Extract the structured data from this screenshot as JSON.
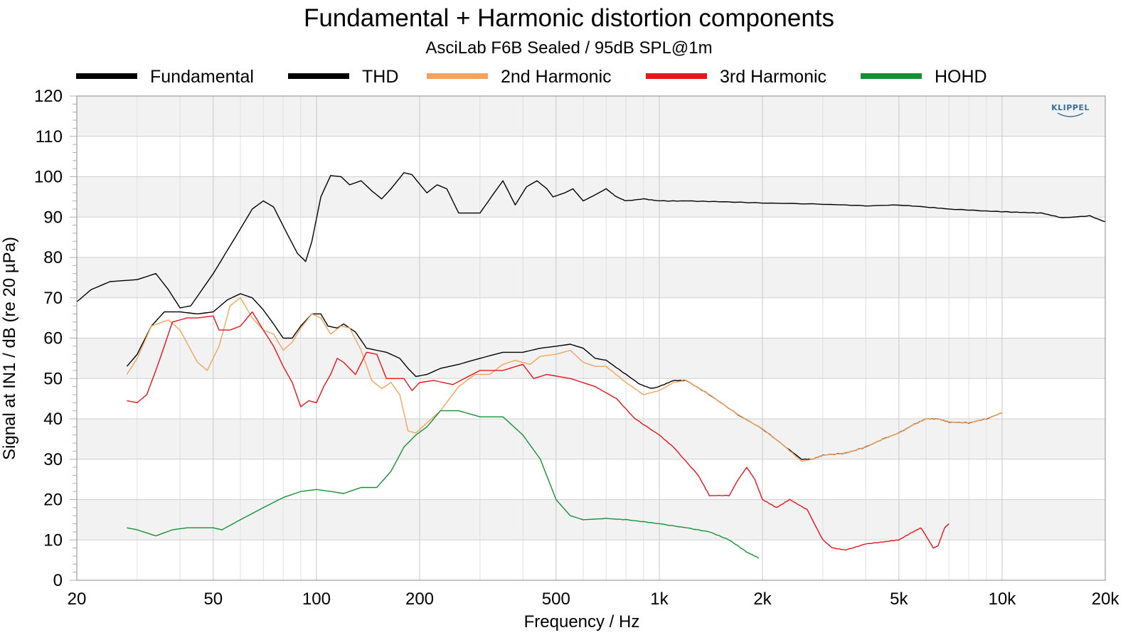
{
  "chart_data": {
    "type": "line",
    "title": "Fundamental + Harmonic distortion components",
    "subtitle": "AsciLab F6B Sealed / 95dB SPL@1m",
    "xlabel": "Frequency / Hz",
    "ylabel": "Signal at IN1 / dB (re 20 µPa)",
    "x_scale": "log",
    "xlim": [
      20,
      20000
    ],
    "ylim": [
      0,
      120
    ],
    "x_ticks": [
      {
        "value": 20,
        "label": "20"
      },
      {
        "value": 50,
        "label": "50"
      },
      {
        "value": 100,
        "label": "100"
      },
      {
        "value": 200,
        "label": "200"
      },
      {
        "value": 500,
        "label": "500"
      },
      {
        "value": 1000,
        "label": "1k"
      },
      {
        "value": 2000,
        "label": "2k"
      },
      {
        "value": 5000,
        "label": "5k"
      },
      {
        "value": 10000,
        "label": "10k"
      },
      {
        "value": 20000,
        "label": "20k"
      }
    ],
    "y_ticks": [
      0,
      10,
      20,
      30,
      40,
      50,
      60,
      70,
      80,
      90,
      100,
      110,
      120
    ],
    "grid": true,
    "legend_position": "top",
    "logo": "KLIPPEL",
    "series": [
      {
        "name": "Fundamental",
        "color": "#000000",
        "points": [
          [
            20,
            69
          ],
          [
            22,
            72
          ],
          [
            25,
            74
          ],
          [
            30,
            74.5
          ],
          [
            34,
            76
          ],
          [
            37,
            72
          ],
          [
            40,
            67.5
          ],
          [
            43,
            68
          ],
          [
            50,
            76
          ],
          [
            58,
            85
          ],
          [
            65,
            92
          ],
          [
            70,
            94
          ],
          [
            75,
            92.5
          ],
          [
            82,
            86
          ],
          [
            88,
            81
          ],
          [
            93,
            79
          ],
          [
            97,
            84
          ],
          [
            103,
            95
          ],
          [
            110,
            100.3
          ],
          [
            118,
            100
          ],
          [
            125,
            98
          ],
          [
            135,
            99
          ],
          [
            145,
            96.5
          ],
          [
            155,
            94.5
          ],
          [
            165,
            97
          ],
          [
            180,
            101
          ],
          [
            190,
            100.5
          ],
          [
            210,
            96
          ],
          [
            225,
            98
          ],
          [
            240,
            97
          ],
          [
            260,
            91
          ],
          [
            280,
            91
          ],
          [
            300,
            91
          ],
          [
            330,
            96
          ],
          [
            350,
            99
          ],
          [
            380,
            93
          ],
          [
            410,
            97.5
          ],
          [
            440,
            99
          ],
          [
            470,
            97
          ],
          [
            490,
            95
          ],
          [
            530,
            96
          ],
          [
            560,
            97
          ],
          [
            600,
            94
          ],
          [
            650,
            95.5
          ],
          [
            700,
            97
          ],
          [
            750,
            95
          ],
          [
            800,
            94
          ],
          [
            900,
            94.5
          ],
          [
            1000,
            94
          ],
          [
            1200,
            94
          ],
          [
            1500,
            93.8
          ],
          [
            2000,
            93.5
          ],
          [
            3000,
            93.2
          ],
          [
            4000,
            92.8
          ],
          [
            5000,
            93
          ],
          [
            6000,
            92.5
          ],
          [
            7000,
            92
          ],
          [
            9000,
            91.5
          ],
          [
            11000,
            91.2
          ],
          [
            13000,
            91
          ],
          [
            15000,
            89.8
          ],
          [
            18000,
            90.3
          ],
          [
            20000,
            88.8
          ]
        ]
      },
      {
        "name": "THD",
        "color": "#000000",
        "points": [
          [
            28,
            53
          ],
          [
            30,
            56
          ],
          [
            33,
            63
          ],
          [
            36,
            66.5
          ],
          [
            40,
            66.5
          ],
          [
            45,
            66
          ],
          [
            50,
            66.5
          ],
          [
            55,
            69.5
          ],
          [
            60,
            71
          ],
          [
            65,
            70
          ],
          [
            70,
            67
          ],
          [
            75,
            63.5
          ],
          [
            80,
            60
          ],
          [
            85,
            60
          ],
          [
            90,
            63
          ],
          [
            97,
            66
          ],
          [
            103,
            66
          ],
          [
            108,
            63
          ],
          [
            115,
            62.5
          ],
          [
            120,
            63.5
          ],
          [
            130,
            61.5
          ],
          [
            140,
            57.5
          ],
          [
            160,
            56.5
          ],
          [
            175,
            55
          ],
          [
            185,
            52.5
          ],
          [
            195,
            50.5
          ],
          [
            210,
            51
          ],
          [
            230,
            52.5
          ],
          [
            260,
            53.5
          ],
          [
            300,
            55
          ],
          [
            350,
            56.5
          ],
          [
            400,
            56.5
          ],
          [
            450,
            57.5
          ],
          [
            500,
            58
          ],
          [
            550,
            58.5
          ],
          [
            600,
            57.5
          ],
          [
            650,
            55
          ],
          [
            700,
            54.5
          ],
          [
            800,
            51
          ],
          [
            880,
            48.5
          ],
          [
            950,
            47.5
          ],
          [
            1000,
            48
          ],
          [
            1100,
            49.5
          ],
          [
            1200,
            49.5
          ],
          [
            1400,
            46
          ],
          [
            1700,
            41
          ],
          [
            2000,
            37.5
          ],
          [
            2300,
            33.5
          ],
          [
            2600,
            30
          ],
          [
            2800,
            30
          ],
          [
            3000,
            31
          ],
          [
            3500,
            31.5
          ],
          [
            4000,
            33
          ],
          [
            4500,
            35
          ],
          [
            5000,
            36.5
          ],
          [
            5500,
            38.5
          ],
          [
            6000,
            40
          ],
          [
            6500,
            40
          ],
          [
            7000,
            39.2
          ],
          [
            8000,
            39
          ],
          [
            9000,
            40
          ],
          [
            10000,
            41.5
          ]
        ]
      },
      {
        "name": "2nd Harmonic",
        "color": "#f5a35a",
        "points": [
          [
            28,
            51
          ],
          [
            30,
            55
          ],
          [
            33,
            63
          ],
          [
            37,
            64.5
          ],
          [
            40,
            62
          ],
          [
            45,
            54
          ],
          [
            48,
            52
          ],
          [
            52,
            58
          ],
          [
            56,
            68
          ],
          [
            60,
            70
          ],
          [
            65,
            65
          ],
          [
            70,
            62
          ],
          [
            75,
            61
          ],
          [
            80,
            57
          ],
          [
            85,
            59
          ],
          [
            90,
            62.5
          ],
          [
            97,
            66
          ],
          [
            103,
            65
          ],
          [
            110,
            61
          ],
          [
            118,
            63
          ],
          [
            125,
            62.5
          ],
          [
            135,
            57
          ],
          [
            145,
            49.5
          ],
          [
            155,
            47.5
          ],
          [
            165,
            49
          ],
          [
            175,
            46
          ],
          [
            185,
            37
          ],
          [
            195,
            36.5
          ],
          [
            210,
            39
          ],
          [
            230,
            42
          ],
          [
            260,
            48
          ],
          [
            290,
            51
          ],
          [
            320,
            51
          ],
          [
            350,
            53.5
          ],
          [
            380,
            54.5
          ],
          [
            420,
            53.5
          ],
          [
            450,
            55.5
          ],
          [
            500,
            56
          ],
          [
            550,
            57
          ],
          [
            600,
            54
          ],
          [
            650,
            53
          ],
          [
            700,
            53
          ],
          [
            800,
            49
          ],
          [
            900,
            46
          ],
          [
            1000,
            47
          ],
          [
            1100,
            49
          ],
          [
            1200,
            49.5
          ],
          [
            1400,
            46
          ],
          [
            1700,
            41
          ],
          [
            2000,
            37.5
          ],
          [
            2300,
            33.5
          ],
          [
            2600,
            29.5
          ],
          [
            2800,
            30
          ],
          [
            3000,
            31
          ],
          [
            3500,
            31.5
          ],
          [
            4000,
            33
          ],
          [
            4500,
            35
          ],
          [
            5000,
            36.5
          ],
          [
            5500,
            38.5
          ],
          [
            6000,
            40
          ],
          [
            6500,
            40
          ],
          [
            7000,
            39.2
          ],
          [
            8000,
            39
          ],
          [
            9000,
            40
          ],
          [
            10000,
            41.5
          ]
        ]
      },
      {
        "name": "3rd Harmonic",
        "color": "#e8151b",
        "points": [
          [
            28,
            44.5
          ],
          [
            30,
            44
          ],
          [
            32,
            46
          ],
          [
            34,
            52
          ],
          [
            36,
            58
          ],
          [
            38,
            64
          ],
          [
            42,
            65
          ],
          [
            45,
            65
          ],
          [
            50,
            65.5
          ],
          [
            52,
            62
          ],
          [
            56,
            62
          ],
          [
            60,
            63
          ],
          [
            65,
            66.5
          ],
          [
            70,
            62
          ],
          [
            75,
            58
          ],
          [
            80,
            53
          ],
          [
            85,
            49
          ],
          [
            90,
            43
          ],
          [
            95,
            44.5
          ],
          [
            100,
            44
          ],
          [
            105,
            48
          ],
          [
            110,
            51
          ],
          [
            115,
            55
          ],
          [
            120,
            54
          ],
          [
            130,
            51
          ],
          [
            140,
            56.5
          ],
          [
            150,
            56
          ],
          [
            160,
            50
          ],
          [
            180,
            50
          ],
          [
            190,
            47
          ],
          [
            200,
            49
          ],
          [
            220,
            49.5
          ],
          [
            250,
            48.5
          ],
          [
            300,
            52
          ],
          [
            350,
            52
          ],
          [
            400,
            53.5
          ],
          [
            430,
            50
          ],
          [
            470,
            51
          ],
          [
            550,
            50
          ],
          [
            650,
            48
          ],
          [
            750,
            45
          ],
          [
            850,
            40
          ],
          [
            1000,
            36
          ],
          [
            1100,
            33
          ],
          [
            1300,
            26
          ],
          [
            1400,
            21
          ],
          [
            1600,
            21
          ],
          [
            1700,
            25
          ],
          [
            1800,
            28
          ],
          [
            1900,
            25
          ],
          [
            2000,
            20
          ],
          [
            2200,
            18
          ],
          [
            2400,
            20
          ],
          [
            2700,
            17.5
          ],
          [
            3000,
            10
          ],
          [
            3200,
            8
          ],
          [
            3500,
            7.5
          ],
          [
            4000,
            9
          ],
          [
            4500,
            9.5
          ],
          [
            5000,
            10
          ],
          [
            5500,
            12
          ],
          [
            5800,
            13
          ],
          [
            6000,
            11
          ],
          [
            6300,
            8
          ],
          [
            6500,
            8.5
          ],
          [
            6800,
            13
          ],
          [
            7000,
            14
          ]
        ]
      },
      {
        "name": "HOHD",
        "color": "#139234",
        "points": [
          [
            28,
            13
          ],
          [
            30,
            12.5
          ],
          [
            34,
            11
          ],
          [
            38,
            12.5
          ],
          [
            42,
            13
          ],
          [
            46,
            13
          ],
          [
            50,
            13
          ],
          [
            53,
            12.5
          ],
          [
            60,
            15
          ],
          [
            70,
            18
          ],
          [
            80,
            20.5
          ],
          [
            90,
            22
          ],
          [
            100,
            22.5
          ],
          [
            110,
            22
          ],
          [
            120,
            21.5
          ],
          [
            135,
            23
          ],
          [
            150,
            23
          ],
          [
            165,
            27
          ],
          [
            180,
            33
          ],
          [
            195,
            36
          ],
          [
            210,
            38
          ],
          [
            230,
            42
          ],
          [
            260,
            42
          ],
          [
            300,
            40.5
          ],
          [
            350,
            40.5
          ],
          [
            400,
            36
          ],
          [
            450,
            30
          ],
          [
            500,
            20
          ],
          [
            550,
            16
          ],
          [
            600,
            15
          ],
          [
            700,
            15.3
          ],
          [
            800,
            15
          ],
          [
            900,
            14.5
          ],
          [
            1000,
            14
          ],
          [
            1200,
            13
          ],
          [
            1400,
            12
          ],
          [
            1600,
            10
          ],
          [
            1800,
            7
          ],
          [
            1950,
            5.5
          ]
        ]
      }
    ]
  }
}
